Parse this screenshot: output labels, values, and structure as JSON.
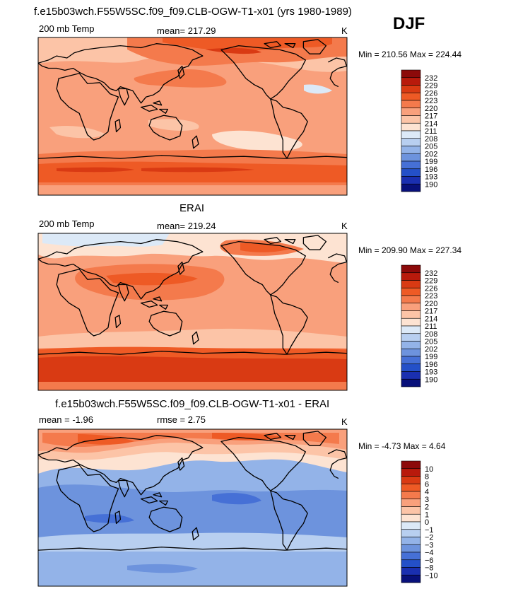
{
  "season": "DJF",
  "panels": [
    {
      "title": "f.e15b03wch.F55W5SC.f09_f09.CLB-OGW-T1-x01 (yrs 1980-1989)",
      "left_label": "200 mb Temp",
      "center_label": "mean=  217.29",
      "units": "K",
      "minmax": "Min = 210.56 Max = 224.44",
      "colorbar": {
        "levels": [
          "232",
          "229",
          "226",
          "223",
          "220",
          "217",
          "214",
          "211",
          "208",
          "205",
          "202",
          "199",
          "196",
          "193",
          "190"
        ],
        "colors": [
          "#8c0a0a",
          "#b81a0c",
          "#d93a13",
          "#ee5a25",
          "#f47a4c",
          "#f9a07c",
          "#fcc4a7",
          "#fde3d2",
          "#dce9f7",
          "#b8cff0",
          "#93b3e8",
          "#6d93dd",
          "#4670d6",
          "#2450c8",
          "#1a2fb0",
          "#08107a"
        ]
      }
    },
    {
      "title": "ERAI",
      "left_label": "200 mb Temp",
      "center_label": "mean=  219.24",
      "units": "K",
      "minmax": "Min = 209.90 Max = 227.34",
      "colorbar": {
        "levels": [
          "232",
          "229",
          "226",
          "223",
          "220",
          "217",
          "214",
          "211",
          "208",
          "205",
          "202",
          "199",
          "196",
          "193",
          "190"
        ],
        "colors": [
          "#8c0a0a",
          "#b81a0c",
          "#d93a13",
          "#ee5a25",
          "#f47a4c",
          "#f9a07c",
          "#fcc4a7",
          "#fde3d2",
          "#dce9f7",
          "#b8cff0",
          "#93b3e8",
          "#6d93dd",
          "#4670d6",
          "#2450c8",
          "#1a2fb0",
          "#08107a"
        ]
      }
    },
    {
      "title": "f.e15b03wch.F55W5SC.f09_f09.CLB-OGW-T1-x01 - ERAI",
      "left_label": "mean =   -1.96",
      "center_label": "rmse =    2.75",
      "units": "K",
      "minmax": "Min =  -4.73 Max =    4.64",
      "colorbar": {
        "levels": [
          "10",
          "8",
          "6",
          "4",
          "3",
          "2",
          "1",
          "0",
          "−1",
          "−2",
          "−3",
          "−4",
          "−6",
          "−8",
          "−10"
        ],
        "colors": [
          "#8c0a0a",
          "#b81a0c",
          "#d93a13",
          "#ee5a25",
          "#f47a4c",
          "#f9a07c",
          "#fcc4a7",
          "#fde3d2",
          "#dce9f7",
          "#b8cff0",
          "#93b3e8",
          "#6d93dd",
          "#4670d6",
          "#2450c8",
          "#1a2fb0",
          "#08107a"
        ]
      }
    }
  ]
}
